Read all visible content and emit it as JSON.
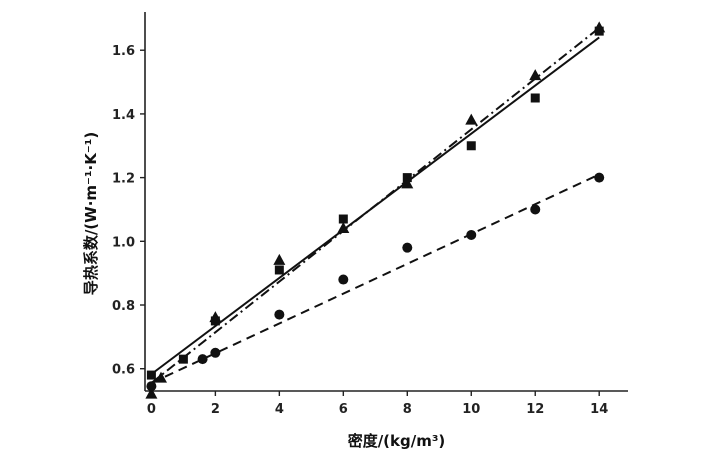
{
  "chart_data": {
    "type": "scatter",
    "xlabel": "密度/(kg/m³)",
    "ylabel": "导热系数/(W·m⁻¹·K⁻¹)",
    "xlim": [
      -0.2,
      14.9
    ],
    "ylim": [
      0.53,
      1.72
    ],
    "x_ticks": [
      0,
      2,
      4,
      6,
      8,
      10,
      12,
      14
    ],
    "x_tick_labels": [
      "0",
      "2",
      "4",
      "6",
      "8",
      "10",
      "12",
      "14"
    ],
    "y_ticks": [
      0.6,
      0.8,
      1.0,
      1.2,
      1.4,
      1.6
    ],
    "y_tick_labels": [
      "0.6",
      "0.8",
      "1.0",
      "1.2",
      "1.4",
      "1.6"
    ],
    "grid": false,
    "legend": "none",
    "series": [
      {
        "marker": "square",
        "fit": "solid",
        "points": [
          {
            "x": 0,
            "y": 0.58
          },
          {
            "x": 1,
            "y": 0.63
          },
          {
            "x": 2,
            "y": 0.75
          },
          {
            "x": 4,
            "y": 0.91
          },
          {
            "x": 6,
            "y": 1.07
          },
          {
            "x": 8,
            "y": 1.2
          },
          {
            "x": 10,
            "y": 1.3
          },
          {
            "x": 12,
            "y": 1.45
          },
          {
            "x": 14,
            "y": 1.66
          }
        ],
        "fit_line": [
          {
            "x": 0,
            "y": 0.583
          },
          {
            "x": 14,
            "y": 1.64
          }
        ]
      },
      {
        "marker": "triangle",
        "fit": "dash-dot",
        "points": [
          {
            "x": 0,
            "y": 0.52
          },
          {
            "x": 0.3,
            "y": 0.57
          },
          {
            "x": 2,
            "y": 0.76
          },
          {
            "x": 4,
            "y": 0.94
          },
          {
            "x": 6,
            "y": 1.04
          },
          {
            "x": 8,
            "y": 1.18
          },
          {
            "x": 10,
            "y": 1.38
          },
          {
            "x": 12,
            "y": 1.52
          },
          {
            "x": 14,
            "y": 1.67
          }
        ],
        "fit_line": [
          {
            "x": 0,
            "y": 0.555
          },
          {
            "x": 14,
            "y": 1.67
          }
        ]
      },
      {
        "marker": "circle",
        "fit": "dashed",
        "points": [
          {
            "x": 0,
            "y": 0.545
          },
          {
            "x": 1.6,
            "y": 0.63
          },
          {
            "x": 2,
            "y": 0.65
          },
          {
            "x": 4,
            "y": 0.77
          },
          {
            "x": 6,
            "y": 0.88
          },
          {
            "x": 8,
            "y": 0.98
          },
          {
            "x": 10,
            "y": 1.02
          },
          {
            "x": 12,
            "y": 1.1
          },
          {
            "x": 14,
            "y": 1.2
          }
        ],
        "fit_line": [
          {
            "x": 0,
            "y": 0.555
          },
          {
            "x": 14,
            "y": 1.21
          }
        ]
      }
    ]
  },
  "colors": {
    "ink": "#111111",
    "axis": "#222222",
    "background": "#ffffff"
  }
}
